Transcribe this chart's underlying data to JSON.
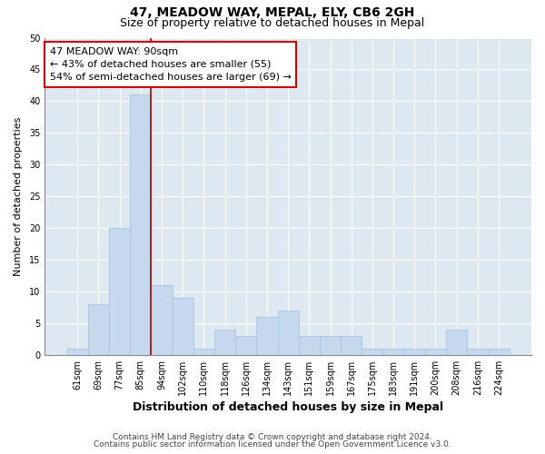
{
  "title": "47, MEADOW WAY, MEPAL, ELY, CB6 2GH",
  "subtitle": "Size of property relative to detached houses in Mepal",
  "xlabel": "Distribution of detached houses by size in Mepal",
  "ylabel": "Number of detached properties",
  "bar_labels": [
    "61sqm",
    "69sqm",
    "77sqm",
    "85sqm",
    "94sqm",
    "102sqm",
    "110sqm",
    "118sqm",
    "126sqm",
    "134sqm",
    "143sqm",
    "151sqm",
    "159sqm",
    "167sqm",
    "175sqm",
    "183sqm",
    "191sqm",
    "200sqm",
    "208sqm",
    "216sqm",
    "224sqm"
  ],
  "bar_values": [
    1,
    8,
    20,
    41,
    11,
    9,
    1,
    4,
    3,
    6,
    7,
    3,
    3,
    3,
    1,
    1,
    1,
    1,
    4,
    1,
    1
  ],
  "bar_color": "#c5d8ed",
  "bar_edge_color": "#a8c4df",
  "ylim": [
    0,
    50
  ],
  "yticks": [
    0,
    5,
    10,
    15,
    20,
    25,
    30,
    35,
    40,
    45,
    50
  ],
  "property_line_x": 3.5,
  "annotation_title": "47 MEADOW WAY: 90sqm",
  "annotation_line1": "← 43% of detached houses are smaller (55)",
  "annotation_line2": "54% of semi-detached houses are larger (69) →",
  "annotation_box_color": "#ffffff",
  "annotation_box_edge": "#cc0000",
  "property_line_color": "#aa0000",
  "footer1": "Contains HM Land Registry data © Crown copyright and database right 2024.",
  "footer2": "Contains public sector information licensed under the Open Government Licence v3.0.",
  "plot_bg_color": "#dde8f0",
  "fig_bg_color": "#ffffff",
  "grid_color": "#ffffff",
  "title_fontsize": 10,
  "subtitle_fontsize": 9,
  "xlabel_fontsize": 9,
  "ylabel_fontsize": 8,
  "tick_fontsize": 7,
  "annotation_fontsize": 8,
  "footer_fontsize": 6.5
}
